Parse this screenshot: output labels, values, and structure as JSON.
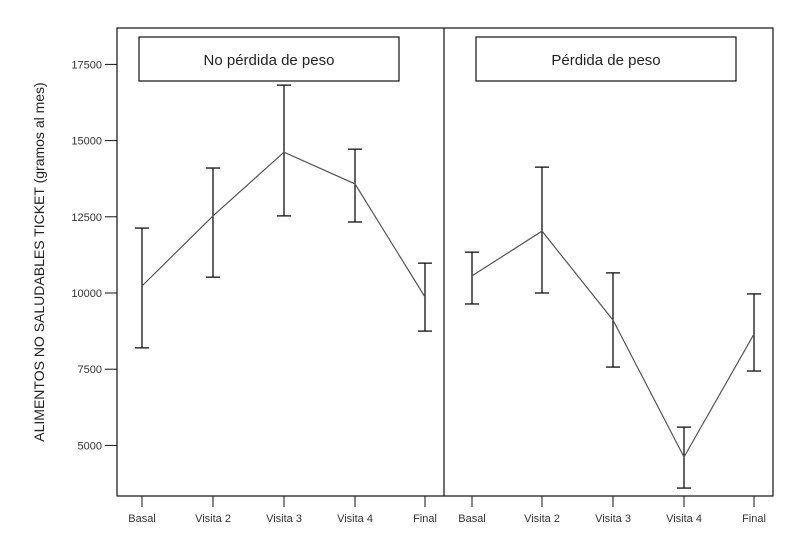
{
  "chart_data": {
    "type": "line",
    "subtype": "line-with-error-bars, faceted",
    "ylabel": "ALIMENTOS NO SALUDABLES TICKET (gramos al mes)",
    "xlabel": "",
    "ylim": [
      3300,
      18600
    ],
    "yticks": [
      5000,
      7500,
      10000,
      12500,
      15000,
      17500
    ],
    "ytick_labels": [
      "5000",
      "7500",
      "10000",
      "12500",
      "15000",
      "17500"
    ],
    "categories": [
      "Basal",
      "Visita 2",
      "Visita 3",
      "Visita 4",
      "Final"
    ],
    "grid": false,
    "legend": "none",
    "panels": [
      {
        "title": "No pérdida de peso",
        "mean": [
          10230,
          12530,
          14620,
          13580,
          9870
        ],
        "upper": [
          12130,
          14100,
          16820,
          14720,
          10980
        ],
        "lower": [
          8200,
          10520,
          12530,
          12330,
          8750
        ]
      },
      {
        "title": "Pérdida de peso",
        "mean": [
          10560,
          12030,
          9110,
          4620,
          8650
        ],
        "upper": [
          11340,
          14130,
          10660,
          5600,
          9970
        ],
        "lower": [
          9640,
          10000,
          7570,
          3600,
          7440
        ]
      }
    ],
    "colors": {
      "line": "#555555",
      "error_bar": "#111111",
      "frame": "#111111"
    }
  }
}
